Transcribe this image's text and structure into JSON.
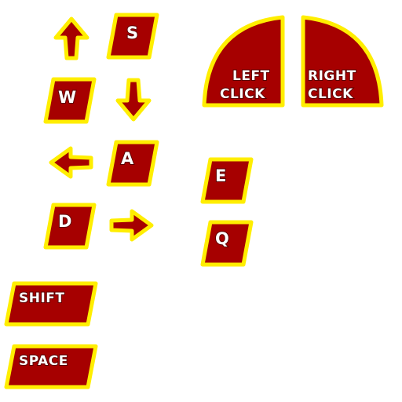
{
  "colors": {
    "key_fill": "#a60000",
    "key_border": "#ffee00",
    "key_border_light": "#fff23a",
    "text": "#ffffff",
    "background": "#ffffff"
  },
  "keys": {
    "s": "S",
    "w": "W",
    "a": "A",
    "d": "D",
    "e": "E",
    "q": "Q",
    "shift": "SHIFT",
    "space": "SPACE"
  },
  "mouse": {
    "left_line1": "LEFT",
    "left_line2": "CLICK",
    "right_line1": "RIGHT",
    "right_line2": "CLICK"
  },
  "arrows": {
    "up": "arrow-up-icon",
    "down": "arrow-down-icon",
    "left": "arrow-left-icon",
    "right": "arrow-right-icon"
  }
}
